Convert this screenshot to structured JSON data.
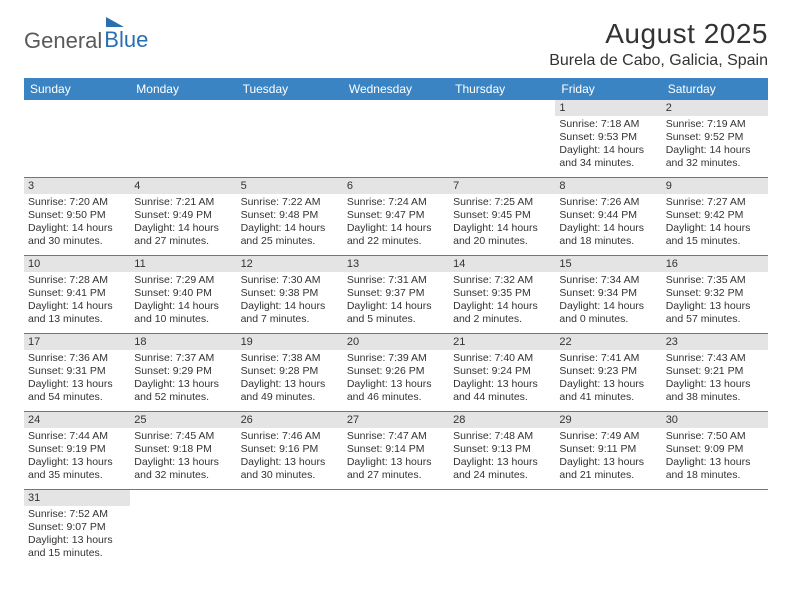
{
  "brand": {
    "general": "General",
    "blue": "Blue"
  },
  "title": {
    "month": "August 2025",
    "location": "Burela de Cabo, Galicia, Spain"
  },
  "calendar": {
    "headers": [
      "Sunday",
      "Monday",
      "Tuesday",
      "Wednesday",
      "Thursday",
      "Friday",
      "Saturday"
    ],
    "header_bg": "#3b84c4",
    "daynum_bg": "#e4e4e4",
    "border_color": "#3b84c4",
    "weeks": [
      [
        null,
        null,
        null,
        null,
        null,
        {
          "n": "1",
          "sr": "Sunrise: 7:18 AM",
          "ss": "Sunset: 9:53 PM",
          "dl1": "Daylight: 14 hours",
          "dl2": "and 34 minutes."
        },
        {
          "n": "2",
          "sr": "Sunrise: 7:19 AM",
          "ss": "Sunset: 9:52 PM",
          "dl1": "Daylight: 14 hours",
          "dl2": "and 32 minutes."
        }
      ],
      [
        {
          "n": "3",
          "sr": "Sunrise: 7:20 AM",
          "ss": "Sunset: 9:50 PM",
          "dl1": "Daylight: 14 hours",
          "dl2": "and 30 minutes."
        },
        {
          "n": "4",
          "sr": "Sunrise: 7:21 AM",
          "ss": "Sunset: 9:49 PM",
          "dl1": "Daylight: 14 hours",
          "dl2": "and 27 minutes."
        },
        {
          "n": "5",
          "sr": "Sunrise: 7:22 AM",
          "ss": "Sunset: 9:48 PM",
          "dl1": "Daylight: 14 hours",
          "dl2": "and 25 minutes."
        },
        {
          "n": "6",
          "sr": "Sunrise: 7:24 AM",
          "ss": "Sunset: 9:47 PM",
          "dl1": "Daylight: 14 hours",
          "dl2": "and 22 minutes."
        },
        {
          "n": "7",
          "sr": "Sunrise: 7:25 AM",
          "ss": "Sunset: 9:45 PM",
          "dl1": "Daylight: 14 hours",
          "dl2": "and 20 minutes."
        },
        {
          "n": "8",
          "sr": "Sunrise: 7:26 AM",
          "ss": "Sunset: 9:44 PM",
          "dl1": "Daylight: 14 hours",
          "dl2": "and 18 minutes."
        },
        {
          "n": "9",
          "sr": "Sunrise: 7:27 AM",
          "ss": "Sunset: 9:42 PM",
          "dl1": "Daylight: 14 hours",
          "dl2": "and 15 minutes."
        }
      ],
      [
        {
          "n": "10",
          "sr": "Sunrise: 7:28 AM",
          "ss": "Sunset: 9:41 PM",
          "dl1": "Daylight: 14 hours",
          "dl2": "and 13 minutes."
        },
        {
          "n": "11",
          "sr": "Sunrise: 7:29 AM",
          "ss": "Sunset: 9:40 PM",
          "dl1": "Daylight: 14 hours",
          "dl2": "and 10 minutes."
        },
        {
          "n": "12",
          "sr": "Sunrise: 7:30 AM",
          "ss": "Sunset: 9:38 PM",
          "dl1": "Daylight: 14 hours",
          "dl2": "and 7 minutes."
        },
        {
          "n": "13",
          "sr": "Sunrise: 7:31 AM",
          "ss": "Sunset: 9:37 PM",
          "dl1": "Daylight: 14 hours",
          "dl2": "and 5 minutes."
        },
        {
          "n": "14",
          "sr": "Sunrise: 7:32 AM",
          "ss": "Sunset: 9:35 PM",
          "dl1": "Daylight: 14 hours",
          "dl2": "and 2 minutes."
        },
        {
          "n": "15",
          "sr": "Sunrise: 7:34 AM",
          "ss": "Sunset: 9:34 PM",
          "dl1": "Daylight: 14 hours",
          "dl2": "and 0 minutes."
        },
        {
          "n": "16",
          "sr": "Sunrise: 7:35 AM",
          "ss": "Sunset: 9:32 PM",
          "dl1": "Daylight: 13 hours",
          "dl2": "and 57 minutes."
        }
      ],
      [
        {
          "n": "17",
          "sr": "Sunrise: 7:36 AM",
          "ss": "Sunset: 9:31 PM",
          "dl1": "Daylight: 13 hours",
          "dl2": "and 54 minutes."
        },
        {
          "n": "18",
          "sr": "Sunrise: 7:37 AM",
          "ss": "Sunset: 9:29 PM",
          "dl1": "Daylight: 13 hours",
          "dl2": "and 52 minutes."
        },
        {
          "n": "19",
          "sr": "Sunrise: 7:38 AM",
          "ss": "Sunset: 9:28 PM",
          "dl1": "Daylight: 13 hours",
          "dl2": "and 49 minutes."
        },
        {
          "n": "20",
          "sr": "Sunrise: 7:39 AM",
          "ss": "Sunset: 9:26 PM",
          "dl1": "Daylight: 13 hours",
          "dl2": "and 46 minutes."
        },
        {
          "n": "21",
          "sr": "Sunrise: 7:40 AM",
          "ss": "Sunset: 9:24 PM",
          "dl1": "Daylight: 13 hours",
          "dl2": "and 44 minutes."
        },
        {
          "n": "22",
          "sr": "Sunrise: 7:41 AM",
          "ss": "Sunset: 9:23 PM",
          "dl1": "Daylight: 13 hours",
          "dl2": "and 41 minutes."
        },
        {
          "n": "23",
          "sr": "Sunrise: 7:43 AM",
          "ss": "Sunset: 9:21 PM",
          "dl1": "Daylight: 13 hours",
          "dl2": "and 38 minutes."
        }
      ],
      [
        {
          "n": "24",
          "sr": "Sunrise: 7:44 AM",
          "ss": "Sunset: 9:19 PM",
          "dl1": "Daylight: 13 hours",
          "dl2": "and 35 minutes."
        },
        {
          "n": "25",
          "sr": "Sunrise: 7:45 AM",
          "ss": "Sunset: 9:18 PM",
          "dl1": "Daylight: 13 hours",
          "dl2": "and 32 minutes."
        },
        {
          "n": "26",
          "sr": "Sunrise: 7:46 AM",
          "ss": "Sunset: 9:16 PM",
          "dl1": "Daylight: 13 hours",
          "dl2": "and 30 minutes."
        },
        {
          "n": "27",
          "sr": "Sunrise: 7:47 AM",
          "ss": "Sunset: 9:14 PM",
          "dl1": "Daylight: 13 hours",
          "dl2": "and 27 minutes."
        },
        {
          "n": "28",
          "sr": "Sunrise: 7:48 AM",
          "ss": "Sunset: 9:13 PM",
          "dl1": "Daylight: 13 hours",
          "dl2": "and 24 minutes."
        },
        {
          "n": "29",
          "sr": "Sunrise: 7:49 AM",
          "ss": "Sunset: 9:11 PM",
          "dl1": "Daylight: 13 hours",
          "dl2": "and 21 minutes."
        },
        {
          "n": "30",
          "sr": "Sunrise: 7:50 AM",
          "ss": "Sunset: 9:09 PM",
          "dl1": "Daylight: 13 hours",
          "dl2": "and 18 minutes."
        }
      ],
      [
        {
          "n": "31",
          "sr": "Sunrise: 7:52 AM",
          "ss": "Sunset: 9:07 PM",
          "dl1": "Daylight: 13 hours",
          "dl2": "and 15 minutes."
        },
        null,
        null,
        null,
        null,
        null,
        null
      ]
    ]
  }
}
